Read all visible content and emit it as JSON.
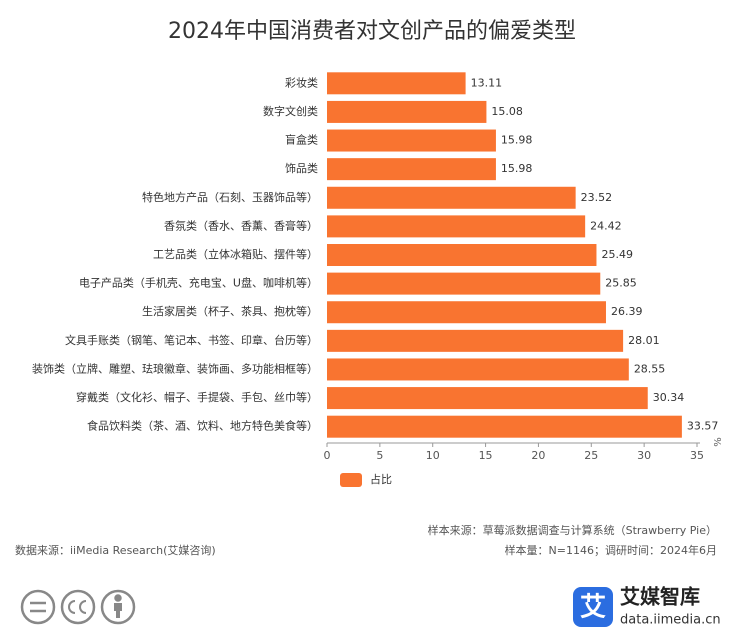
{
  "chart_data": {
    "type": "bar",
    "orientation": "horizontal",
    "title": "2024年中国消费者对文创产品的偏爱类型",
    "categories": [
      "彩妆类",
      "数字文创类",
      "盲盒类",
      "饰品类",
      "特色地方产品（石刻、玉器饰品等）",
      "香氛类（香水、香薰、香膏等）",
      "工艺品类（立体冰箱贴、摆件等）",
      "电子产品类（手机壳、充电宝、U盘、咖啡机等）",
      "生活家居类（杯子、茶具、抱枕等）",
      "文具手账类（钢笔、笔记本、书签、印章、台历等）",
      "装饰类（立牌、雕塑、珐琅徽章、装饰画、多功能相框等）",
      "穿戴类（文化衫、帽子、手提袋、手包、丝巾等）",
      "食品饮料类（茶、酒、饮料、地方特色美食等）"
    ],
    "series": [
      {
        "name": "占比",
        "color": "#f97430",
        "values": [
          13.11,
          15.08,
          15.98,
          15.98,
          23.52,
          24.42,
          25.49,
          25.85,
          26.39,
          28.01,
          28.55,
          30.34,
          33.57
        ]
      }
    ],
    "xlim": [
      0,
      35
    ],
    "xticks": [
      0,
      5,
      10,
      15,
      20,
      25,
      30,
      35
    ],
    "x_label": "%",
    "grid": false,
    "legend": "bottom-left"
  },
  "footer": {
    "sample_source": "样本来源：草莓派数据调查与计算系统（Strawberry Pie）",
    "sample_size": "样本量：N=1146；调研时间：2024年6月",
    "data_source": "数据来源：iiMedia Research(艾媒咨询)"
  },
  "logo": {
    "mark": "艾",
    "name": "艾媒智库",
    "url": "data.iimedia.cn"
  }
}
